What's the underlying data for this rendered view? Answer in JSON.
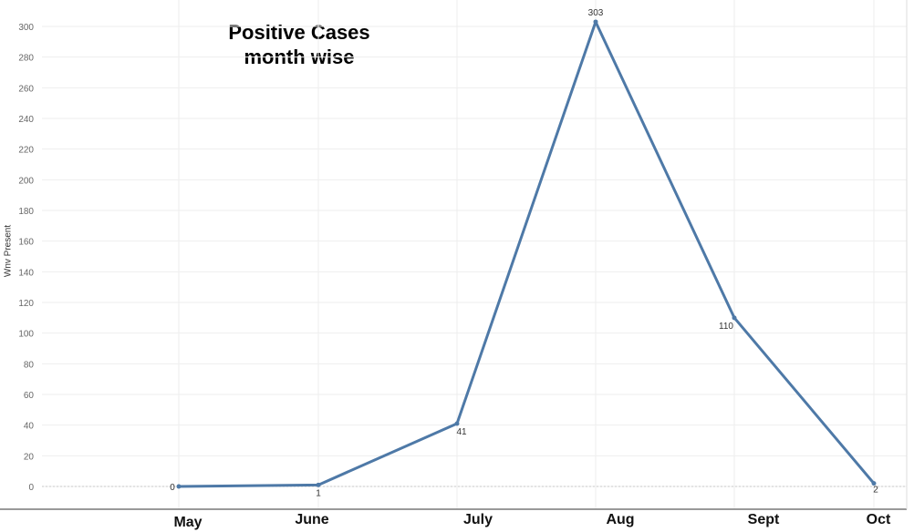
{
  "chart_data": {
    "type": "line",
    "title_lines": [
      "Positive Cases",
      "month wise"
    ],
    "xlabel": "",
    "ylabel": "Wnv Present",
    "categories": [
      "May",
      "June",
      "July",
      "Aug",
      "Sept",
      "Oct"
    ],
    "values": [
      0,
      1,
      41,
      303,
      110,
      2
    ],
    "data_labels": [
      "0",
      "1",
      "41",
      "303",
      "110",
      "2"
    ],
    "ylim": [
      0,
      300
    ],
    "yticks": [
      0,
      20,
      40,
      60,
      80,
      100,
      120,
      140,
      160,
      180,
      200,
      220,
      240,
      260,
      280,
      300
    ],
    "grid": true,
    "line_color": "#4e79a7"
  }
}
